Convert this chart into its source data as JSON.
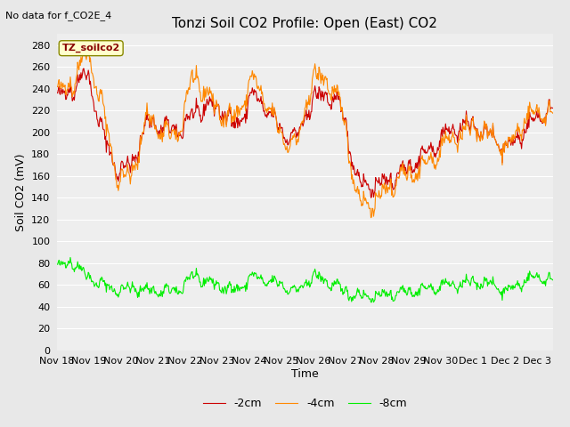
{
  "title": "Tonzi Soil CO2 Profile: Open (East) CO2",
  "top_left_text": "No data for f_CO2E_4",
  "inner_legend_text": "TZ_soilco2",
  "ylabel": "Soil CO2 (mV)",
  "xlabel": "Time",
  "ylim": [
    0,
    290
  ],
  "yticks": [
    0,
    20,
    40,
    60,
    80,
    100,
    120,
    140,
    160,
    180,
    200,
    220,
    240,
    260,
    280
  ],
  "fig_bg_color": "#e8e8e8",
  "plot_bg_color": "#eeeeee",
  "grid_color": "#ffffff",
  "line_colors": {
    "m2cm": "#cc0000",
    "m4cm": "#ff8800",
    "m8cm": "#00ee00"
  },
  "legend_labels": [
    "-2cm",
    "-4cm",
    "-8cm"
  ],
  "title_fontsize": 11,
  "label_fontsize": 9,
  "tick_fontsize": 8
}
